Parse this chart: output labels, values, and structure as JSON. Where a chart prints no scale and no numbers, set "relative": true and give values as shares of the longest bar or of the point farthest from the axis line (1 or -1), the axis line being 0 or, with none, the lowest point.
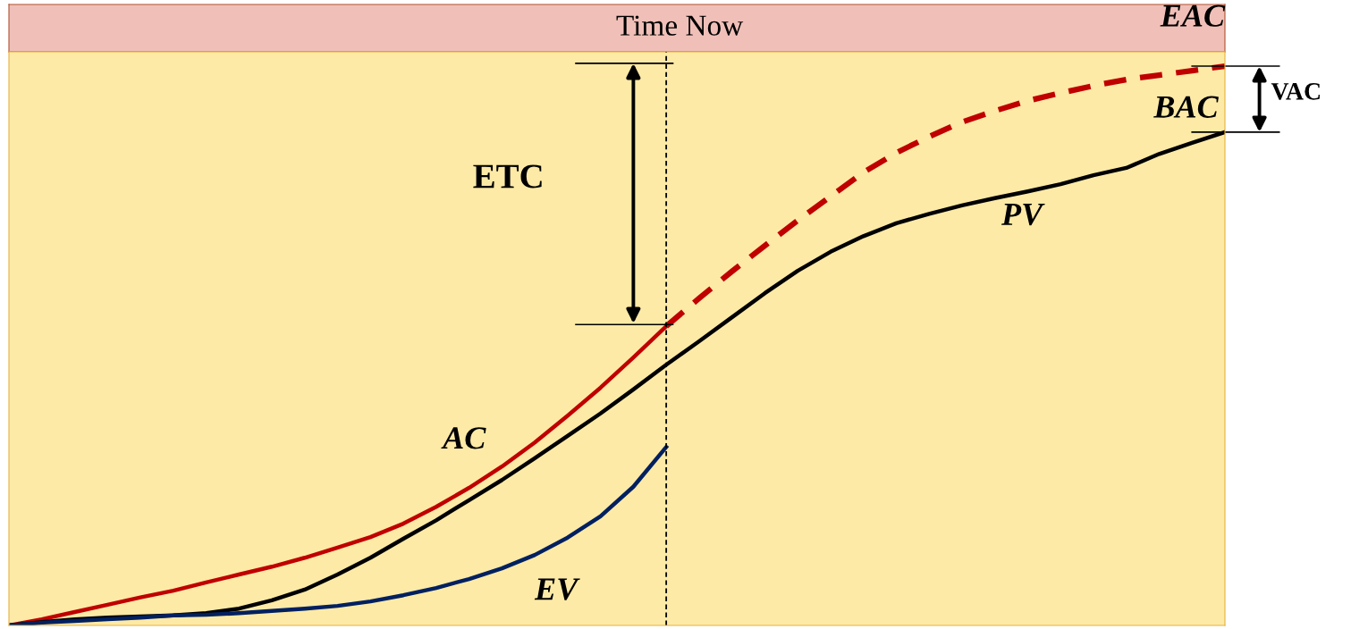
{
  "chart_data": {
    "type": "line",
    "title": "Time Now",
    "relative": true,
    "legend": false,
    "categories": [
      null,
      null,
      null,
      null,
      null,
      null,
      null,
      null,
      null,
      null,
      null,
      null,
      null,
      null,
      null,
      null,
      null,
      null,
      null,
      null,
      null,
      null,
      null,
      null,
      null,
      null,
      null,
      null,
      null,
      null,
      null,
      null,
      null,
      null,
      null,
      null,
      null,
      null
    ],
    "series": [
      {
        "name": "AC",
        "color": "#c00000",
        "line_style": "solid",
        "values": [
          0,
          0.011,
          0.024,
          0.037,
          0.05,
          0.062,
          0.077,
          0.091,
          0.105,
          0.121,
          0.139,
          0.158,
          0.182,
          0.212,
          0.246,
          0.284,
          0.327,
          0.375,
          0.425,
          0.479,
          0.535,
          null,
          null,
          null,
          null,
          null,
          null,
          null,
          null,
          null,
          null,
          null,
          null,
          null,
          null,
          null,
          null,
          null
        ]
      },
      {
        "name": "PV",
        "color": "#000000",
        "line_style": "solid",
        "values": [
          0,
          0.006,
          0.011,
          0.014,
          0.016,
          0.018,
          0.022,
          0.03,
          0.045,
          0.064,
          0.091,
          0.121,
          0.155,
          0.188,
          0.224,
          0.26,
          0.299,
          0.339,
          0.379,
          0.422,
          0.466,
          0.508,
          0.551,
          0.594,
          0.634,
          0.668,
          0.696,
          0.719,
          0.736,
          0.751,
          0.764,
          0.776,
          0.789,
          0.805,
          0.818,
          0.843,
          0.863,
          0.882
        ]
      },
      {
        "name": "EV",
        "color": "#002060",
        "line_style": "solid",
        "values": [
          0,
          0.005,
          0.008,
          0.011,
          0.014,
          0.018,
          0.019,
          0.022,
          0.026,
          0.03,
          0.035,
          0.043,
          0.054,
          0.067,
          0.083,
          0.102,
          0.126,
          0.157,
          0.195,
          0.248,
          0.319,
          null,
          null,
          null,
          null,
          null,
          null,
          null,
          null,
          null,
          null,
          null,
          null,
          null,
          null,
          null,
          null,
          null
        ]
      },
      {
        "name": "EAC",
        "color": "#c00000",
        "line_style": "dashed",
        "values": [
          null,
          null,
          null,
          null,
          null,
          null,
          null,
          null,
          null,
          null,
          null,
          null,
          null,
          null,
          null,
          null,
          null,
          null,
          null,
          null,
          0.535,
          0.585,
          0.633,
          0.679,
          0.724,
          0.767,
          0.81,
          0.845,
          0.874,
          0.9,
          0.92,
          0.938,
          0.952,
          0.965,
          0.976,
          0.984,
          0.992,
          1.0
        ]
      }
    ],
    "annotations": [
      "ETC",
      "VAC",
      "BAC"
    ]
  }
}
